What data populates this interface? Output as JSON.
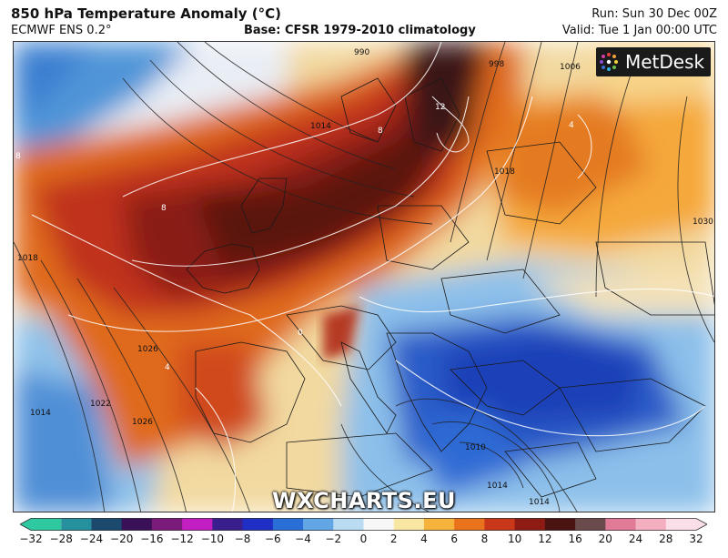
{
  "header": {
    "title": "850 hPa Temperature Anomaly (°C)",
    "model": "ECMWF ENS 0.2°",
    "base": "Base: CFSR 1979-2010 climatology",
    "run": "Run: Sun 30 Dec 00Z",
    "valid": "Valid: Tue 1 Jan 00:00 UTC"
  },
  "logo": {
    "text": "MetDesk"
  },
  "watermark": {
    "text": "WXCHARTS.EU"
  },
  "colorbar": {
    "ticks": [
      "−32",
      "−28",
      "−24",
      "−20",
      "−16",
      "−12",
      "−10",
      "−8",
      "−6",
      "−4",
      "−2",
      "0",
      "2",
      "4",
      "6",
      "8",
      "10",
      "12",
      "16",
      "20",
      "24",
      "28",
      "32"
    ],
    "colors": [
      "#2ec9a0",
      "#27909e",
      "#1b4a6e",
      "#3a1158",
      "#7a1a7a",
      "#c21ec2",
      "#3a1e8e",
      "#1f2ec4",
      "#2a6fd8",
      "#63a6e6",
      "#b9dcf3",
      "#f7f7f7",
      "#f9e6a3",
      "#f5b33c",
      "#e8731c",
      "#c8371a",
      "#8e1c14",
      "#4a1210",
      "#6a4a4a",
      "#e07a96",
      "#f4b0c0",
      "#fbdfe8"
    ]
  },
  "contour_labels": [
    "990",
    "998",
    "1006",
    "1014",
    "1018",
    "1030",
    "1022",
    "1026",
    "1014",
    "1010",
    "1014",
    "1026",
    "1018",
    "1014",
    "12",
    "8",
    "8",
    "8",
    "4",
    "4",
    "0"
  ]
}
